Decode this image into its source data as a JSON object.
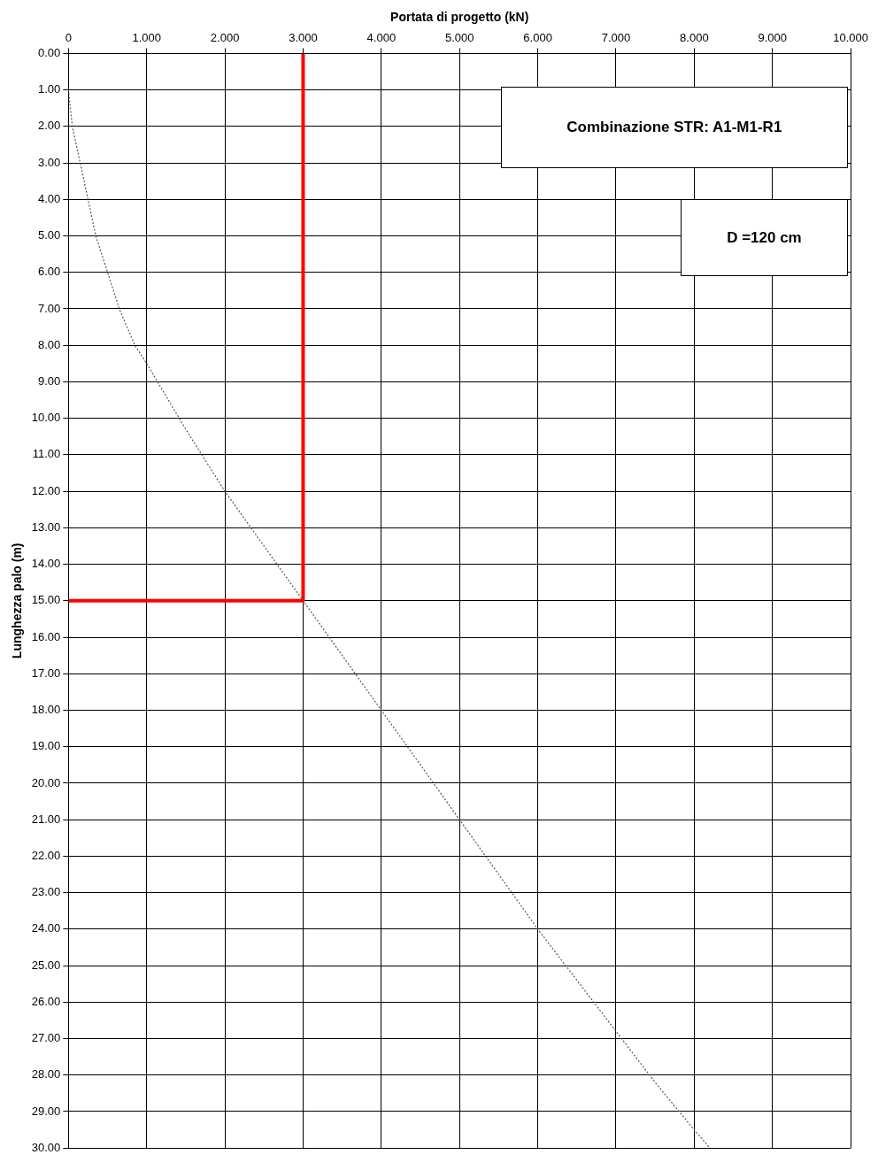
{
  "chart_data": {
    "type": "line",
    "xlabel": "Portata di progetto (kN)",
    "ylabel": "Lunghezza palo (m)",
    "xlim": [
      0,
      10
    ],
    "xticks": [
      0,
      {
        "value": 1,
        "label": "1.000"
      },
      {
        "value": 2,
        "label": "2.000"
      },
      {
        "value": 3,
        "label": "3.000"
      },
      {
        "value": 4,
        "label": "4.000"
      },
      {
        "value": 5,
        "label": "5.000"
      },
      {
        "value": 6,
        "label": "6.000"
      },
      {
        "value": 7,
        "label": "7.000"
      },
      {
        "value": 8,
        "label": "8.000"
      },
      {
        "value": 9,
        "label": "9.000"
      },
      {
        "value": 10,
        "label": "10.000"
      }
    ],
    "ylim": [
      30,
      0
    ],
    "yticks": [
      {
        "value": 0,
        "label": "0.00"
      },
      {
        "value": 1,
        "label": "1.00"
      },
      {
        "value": 2,
        "label": "2.00"
      },
      {
        "value": 3,
        "label": "3.00"
      },
      {
        "value": 4,
        "label": "4.00"
      },
      {
        "value": 5,
        "label": "5.00"
      },
      {
        "value": 6,
        "label": "6.00"
      },
      {
        "value": 7,
        "label": "7.00"
      },
      {
        "value": 8,
        "label": "8.00"
      },
      {
        "value": 9,
        "label": "9.00"
      },
      {
        "value": 10,
        "label": "10.00"
      },
      {
        "value": 11,
        "label": "11.00"
      },
      {
        "value": 12,
        "label": "12.00"
      },
      {
        "value": 13,
        "label": "13.00"
      },
      {
        "value": 14,
        "label": "14.00"
      },
      {
        "value": 15,
        "label": "15.00"
      },
      {
        "value": 16,
        "label": "16.00"
      },
      {
        "value": 17,
        "label": "17.00"
      },
      {
        "value": 18,
        "label": "18.00"
      },
      {
        "value": 19,
        "label": "19.00"
      },
      {
        "value": 20,
        "label": "20.00"
      },
      {
        "value": 21,
        "label": "21.00"
      },
      {
        "value": 22,
        "label": "22.00"
      },
      {
        "value": 23,
        "label": "23.00"
      },
      {
        "value": 24,
        "label": "24.00"
      },
      {
        "value": 25,
        "label": "25.00"
      },
      {
        "value": 26,
        "label": "26.00"
      },
      {
        "value": 27,
        "label": "27.00"
      },
      {
        "value": 28,
        "label": "28.00"
      },
      {
        "value": 29,
        "label": "29.00"
      },
      {
        "value": 30,
        "label": "30.00"
      }
    ],
    "grid": true,
    "legend": false,
    "marker": "none",
    "series": [
      {
        "color": "#555555",
        "line_style": "dotted",
        "x": [
          0,
          0.05,
          0.15,
          0.25,
          0.35,
          0.5,
          0.65,
          0.85,
          1,
          1.5,
          2,
          2.5,
          3,
          3.5,
          4,
          4.5,
          5,
          5.5,
          6,
          6.5,
          7,
          7.5,
          8,
          8.2
        ],
        "values": [
          1,
          2,
          3,
          4,
          5,
          6,
          7,
          8,
          8.5,
          10.3,
          12,
          13.5,
          15,
          16.5,
          18,
          19.5,
          21,
          22.5,
          24,
          25.4,
          26.8,
          28.2,
          29.5,
          30
        ]
      },
      {
        "color": "#ff0000",
        "line_style": "solid",
        "x": [
          0,
          3,
          3
        ],
        "values": [
          15,
          15,
          0
        ]
      }
    ],
    "annotations": [
      "Combinazione STR: A1-M1-R1",
      "D =120 cm"
    ]
  }
}
